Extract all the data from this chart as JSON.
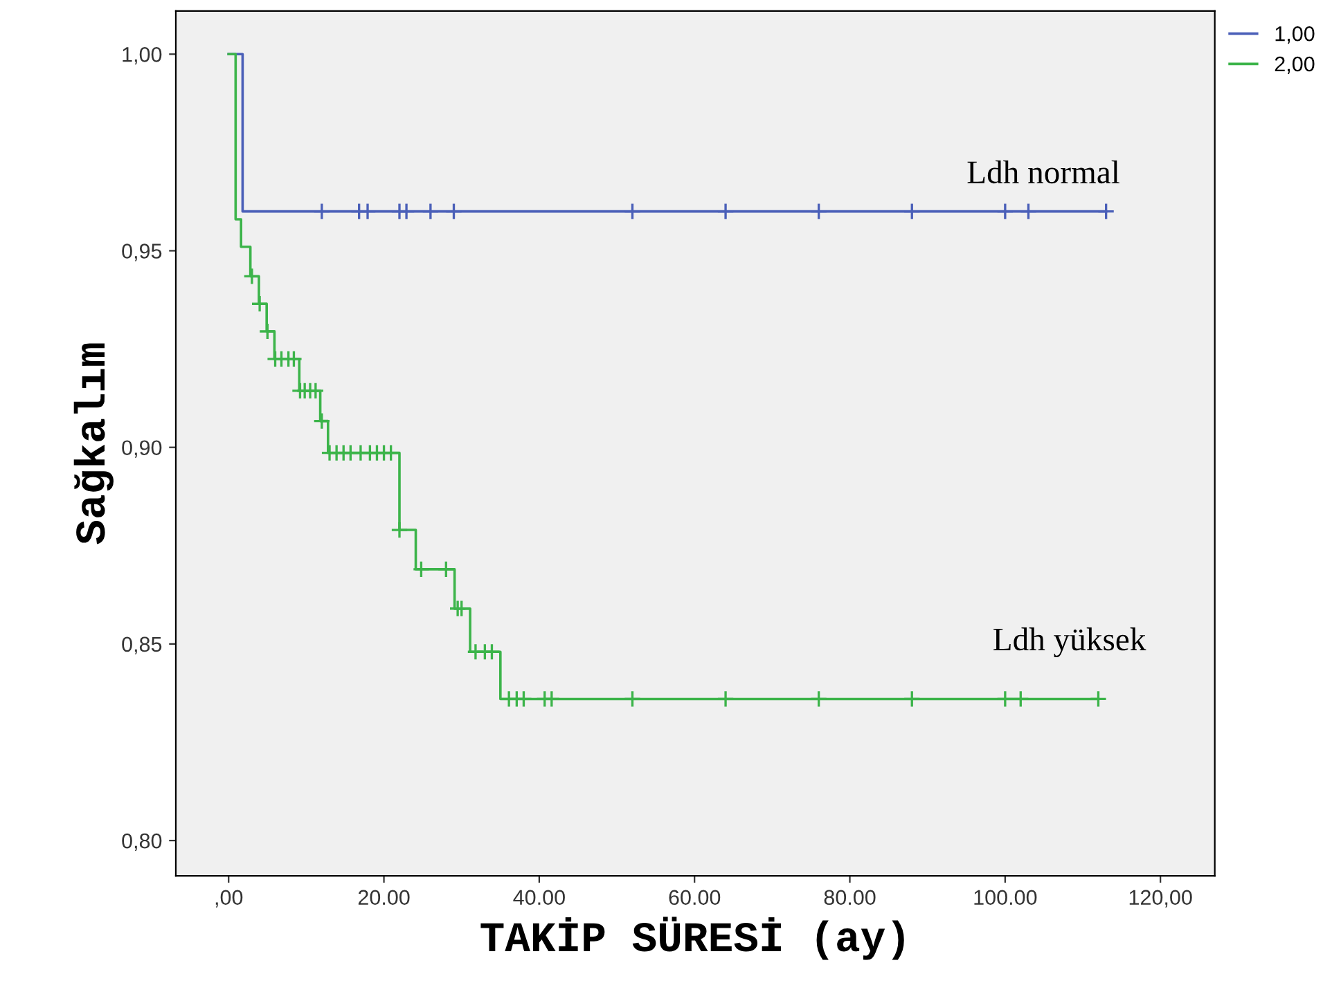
{
  "chart_data": {
    "type": "step",
    "xlabel": "TAKİP SÜRESİ (ay)",
    "ylabel": "Sağkalım",
    "xlim": [
      -6.8,
      127
    ],
    "ylim": [
      0.791,
      1.011
    ],
    "xticks": [
      {
        "value": 0,
        "label": ",00"
      },
      {
        "value": 20,
        "label": "20.00"
      },
      {
        "value": 40,
        "label": "40.00"
      },
      {
        "value": 60,
        "label": "60.00"
      },
      {
        "value": 80,
        "label": "80.00"
      },
      {
        "value": 100,
        "label": "100.00"
      },
      {
        "value": 120,
        "label": "120,00"
      }
    ],
    "yticks": [
      {
        "value": 0.8,
        "label": "0,80"
      },
      {
        "value": 0.85,
        "label": "0,85"
      },
      {
        "value": 0.9,
        "label": "0,90"
      },
      {
        "value": 0.95,
        "label": "0,95"
      },
      {
        "value": 1.0,
        "label": "1,00"
      }
    ],
    "grid": false,
    "legend": "top right",
    "series": [
      {
        "name": "1,00",
        "color": "#4a5fb8",
        "marker": "none",
        "x": [
          0,
          1.8,
          113
        ],
        "values": [
          1.0,
          0.96,
          0.96
        ]
      },
      {
        "name": "2,00",
        "color": "#3cb44a",
        "marker": "none",
        "x": [
          0,
          0.9,
          1.6,
          2.8,
          3.9,
          4.9,
          5.9,
          9.1,
          11.8,
          12.8,
          22.0,
          24.1,
          29.1,
          31.1,
          35.0,
          112
        ],
        "values": [
          1.0,
          0.958,
          0.951,
          0.9435,
          0.9365,
          0.9295,
          0.9225,
          0.9144,
          0.9067,
          0.8986,
          0.879,
          0.869,
          0.859,
          0.848,
          0.836,
          0.836
        ]
      },
      {
        "type": "scatter",
        "color": "#4a5fb8",
        "marker": "cross",
        "x": [
          12.0,
          16.8,
          17.9,
          22.0,
          22.9,
          26.0,
          29.0,
          52,
          64,
          76,
          88,
          100,
          103,
          113
        ],
        "values": [
          0.96,
          0.96,
          0.96,
          0.96,
          0.96,
          0.96,
          0.96,
          0.96,
          0.96,
          0.96,
          0.96,
          0.96,
          0.96,
          0.96
        ]
      },
      {
        "type": "scatter",
        "color": "#3cb44a",
        "marker": "cross",
        "x": [
          3.0,
          4.0,
          5.0,
          6.0,
          6.8,
          7.7,
          8.4,
          9.2,
          9.8,
          10.5,
          11.2,
          12.0,
          13.0,
          13.9,
          14.8,
          15.7,
          17.0,
          18.2,
          19.1,
          20.0,
          20.9,
          22.0,
          24.8,
          28.0,
          29.5,
          30.0,
          31.8,
          33.0,
          33.9,
          36.1,
          37.1,
          38.0,
          40.7,
          41.6,
          52,
          64,
          76,
          88,
          100,
          102,
          112
        ],
        "values": [
          0.9435,
          0.9365,
          0.9295,
          0.9225,
          0.9225,
          0.9225,
          0.9225,
          0.9144,
          0.9144,
          0.9144,
          0.9144,
          0.9067,
          0.8986,
          0.8986,
          0.8986,
          0.8986,
          0.8986,
          0.8986,
          0.8986,
          0.8986,
          0.8986,
          0.879,
          0.869,
          0.869,
          0.859,
          0.859,
          0.848,
          0.848,
          0.848,
          0.836,
          0.836,
          0.836,
          0.836,
          0.836,
          0.836,
          0.836,
          0.836,
          0.836,
          0.836,
          0.836,
          0.836
        ]
      }
    ],
    "annotations": [
      "Ldh normal",
      "Ldh yüksek"
    ]
  }
}
